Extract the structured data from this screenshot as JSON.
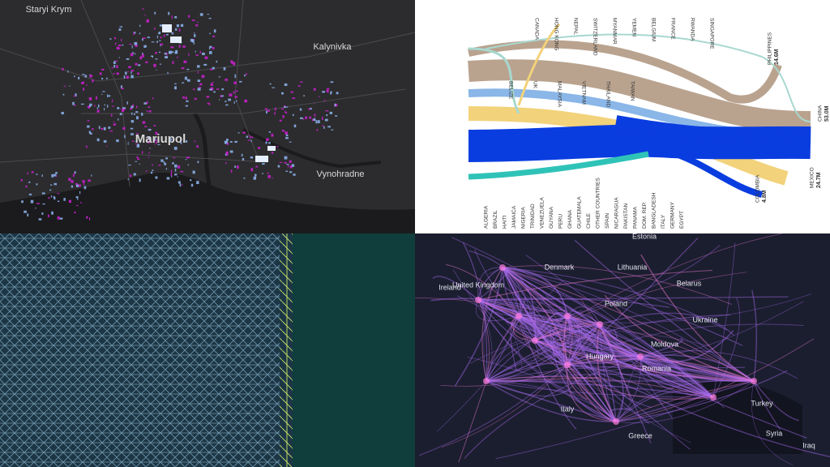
{
  "mariupol_map": {
    "places": [
      "Staryi Krym",
      "Kalynivka",
      "Mariupol",
      "Vynohradne"
    ]
  },
  "sankey": {
    "top_labels": [
      "CANADA",
      "HONG KONG",
      "NEPAL",
      "SWITZERLAND",
      "MYANMAR",
      "YEMEN",
      "BELGIUM",
      "FRANCE",
      "RWANDA",
      "SINGAPORE"
    ],
    "mid_labels": [
      "BELIZE",
      "UK",
      "MALAYSIA",
      "VIETNAM",
      "THAILAND",
      "TAIWAN"
    ],
    "bottom_labels": [
      "ALGERIA",
      "BRAZIL",
      "HAITI",
      "JAMAICA",
      "NIGERIA",
      "TRINIDAD",
      "VENEZUELA",
      "GUYANA",
      "PERU",
      "GHANA",
      "GUATEMALA",
      "CHILE",
      "OTHER COUNTRIES",
      "SPAIN",
      "NICARAGUA",
      "PAKISTAN",
      "PANAMA",
      "DOM. REP.",
      "BANGLADESH",
      "ITALY",
      "GERMANY",
      "EGYPT"
    ],
    "right_labels": [
      {
        "name": "PHILIPPINES",
        "total": "14.6M"
      },
      {
        "name": "CHINA",
        "total": "53.0M"
      },
      {
        "name": "COLOMBIA",
        "total": "4.8M"
      },
      {
        "name": "MEXICO",
        "total": "24.7M"
      }
    ]
  },
  "europe_map": {
    "places": [
      "Estonia",
      "Denmark",
      "Lithuania",
      "United Kingdom",
      "Ireland",
      "Belarus",
      "Poland",
      "Ukraine",
      "Hungary",
      "Moldova",
      "Romania",
      "Italy",
      "Turkey",
      "Greece",
      "Syria",
      "Iraq"
    ]
  }
}
